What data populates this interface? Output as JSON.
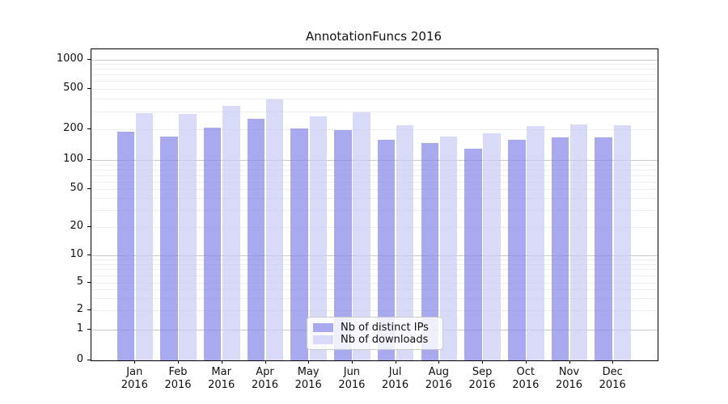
{
  "title": "AnnotationFuncs 2016",
  "colors": {
    "series_ips": "#a9a9f0",
    "series_downloads": "#d9d9f8",
    "grid_major": "#c9c9c9",
    "grid_minor": "#ededed",
    "axis": "#000000",
    "legend_border": "#cccccc"
  },
  "chart_data": {
    "type": "bar",
    "title": "AnnotationFuncs 2016",
    "categories": [
      "Jan",
      "Feb",
      "Mar",
      "Apr",
      "May",
      "Jun",
      "Jul",
      "Aug",
      "Sep",
      "Oct",
      "Nov",
      "Dec"
    ],
    "tick_year": "2016",
    "series": [
      {
        "name": "Nb of distinct IPs",
        "color": "#a9a9f0",
        "values": [
          190,
          170,
          209,
          255,
          206,
          197,
          159,
          147,
          129,
          158,
          166,
          167
        ]
      },
      {
        "name": "Nb of downloads",
        "color": "#d9d9f8",
        "values": [
          288,
          284,
          340,
          390,
          270,
          293,
          219,
          171,
          183,
          218,
          225,
          220
        ]
      }
    ],
    "yscale": "log-with-zero",
    "yticks": [
      0,
      1,
      2,
      5,
      10,
      20,
      50,
      100,
      200,
      500,
      1000
    ],
    "ylim": [
      0,
      1200
    ],
    "grid": true,
    "legend_position": "lower-center"
  }
}
